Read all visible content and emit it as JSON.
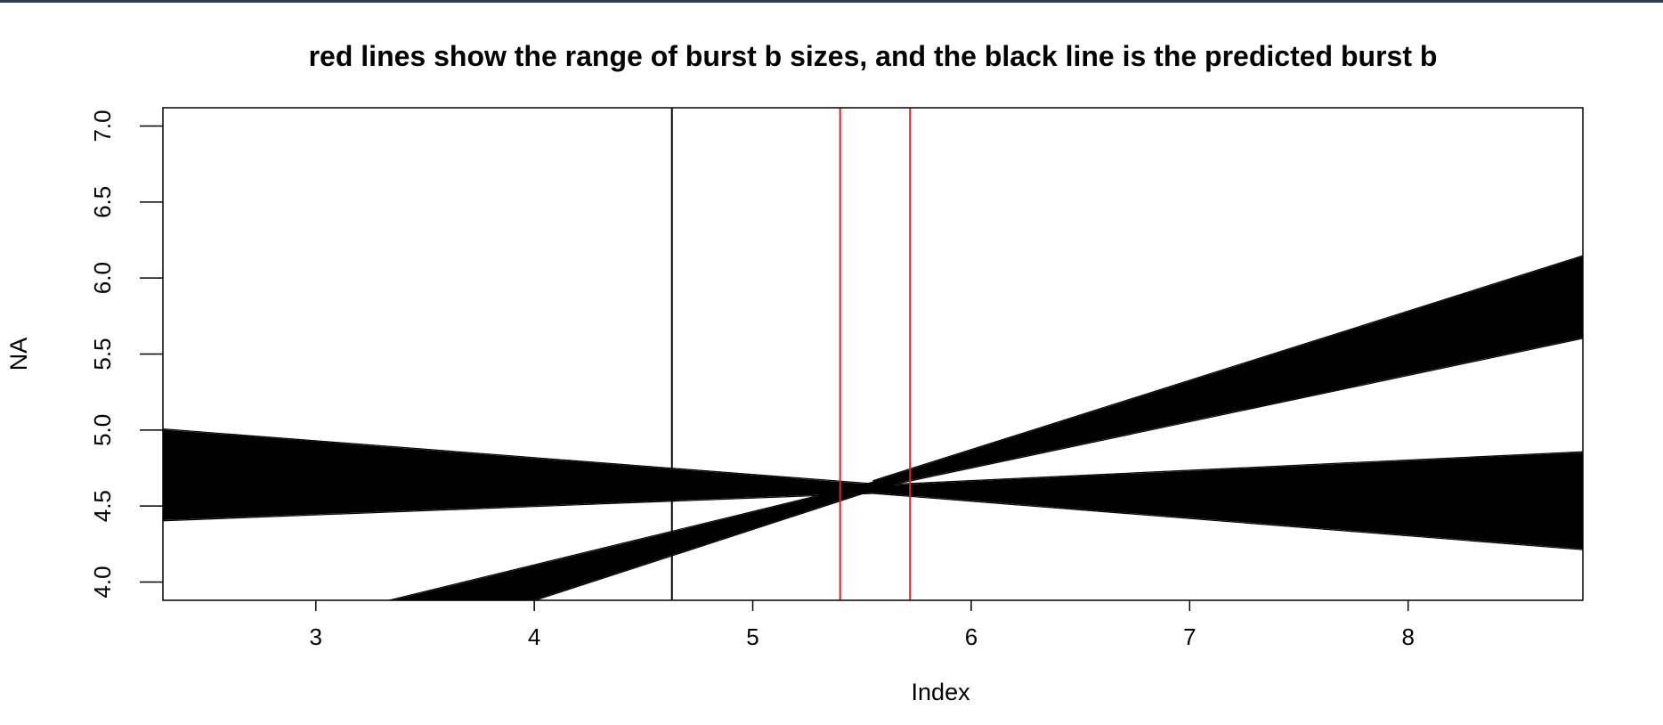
{
  "chart_data": {
    "type": "line",
    "title": "red lines show the range of burst b sizes, and the black line is the predicted burst b",
    "xlabel": "Index",
    "ylabel": "NA",
    "xlim": [
      2.3,
      8.8
    ],
    "ylim": [
      3.88,
      7.12
    ],
    "xticks": [
      3,
      4,
      5,
      6,
      7,
      8
    ],
    "yticks": [
      4.0,
      4.5,
      5.0,
      5.5,
      6.0,
      6.5,
      7.0
    ],
    "xtick_labels": [
      "3",
      "4",
      "5",
      "6",
      "7",
      "8"
    ],
    "ytick_labels": [
      "4.0",
      "4.5",
      "5.0",
      "5.5",
      "6.0",
      "6.5",
      "7.0"
    ],
    "grid": false,
    "legend": "none",
    "colors": {
      "lines": "#000000",
      "range_lines": "#e8202a",
      "predicted_line": "#000000"
    },
    "vertical_lines": [
      {
        "x": 4.63,
        "color": "#000000"
      },
      {
        "x": 5.4,
        "color": "#e8202a"
      },
      {
        "x": 5.72,
        "color": "#e8202a"
      }
    ],
    "bands": [
      {
        "x": [
          2.3,
          5.55
        ],
        "upper": [
          5.0,
          4.64
        ],
        "lower": [
          4.41,
          4.59
        ]
      },
      {
        "x": [
          2.3,
          5.55
        ],
        "upper": [
          3.51,
          4.65
        ],
        "lower": [
          3.09,
          4.61
        ]
      },
      {
        "x": [
          5.55,
          8.8
        ],
        "upper": [
          4.66,
          6.14
        ],
        "lower": [
          4.62,
          5.61
        ]
      },
      {
        "x": [
          5.55,
          8.8
        ],
        "upper": [
          4.63,
          4.85
        ],
        "lower": [
          4.59,
          4.22
        ]
      }
    ]
  }
}
